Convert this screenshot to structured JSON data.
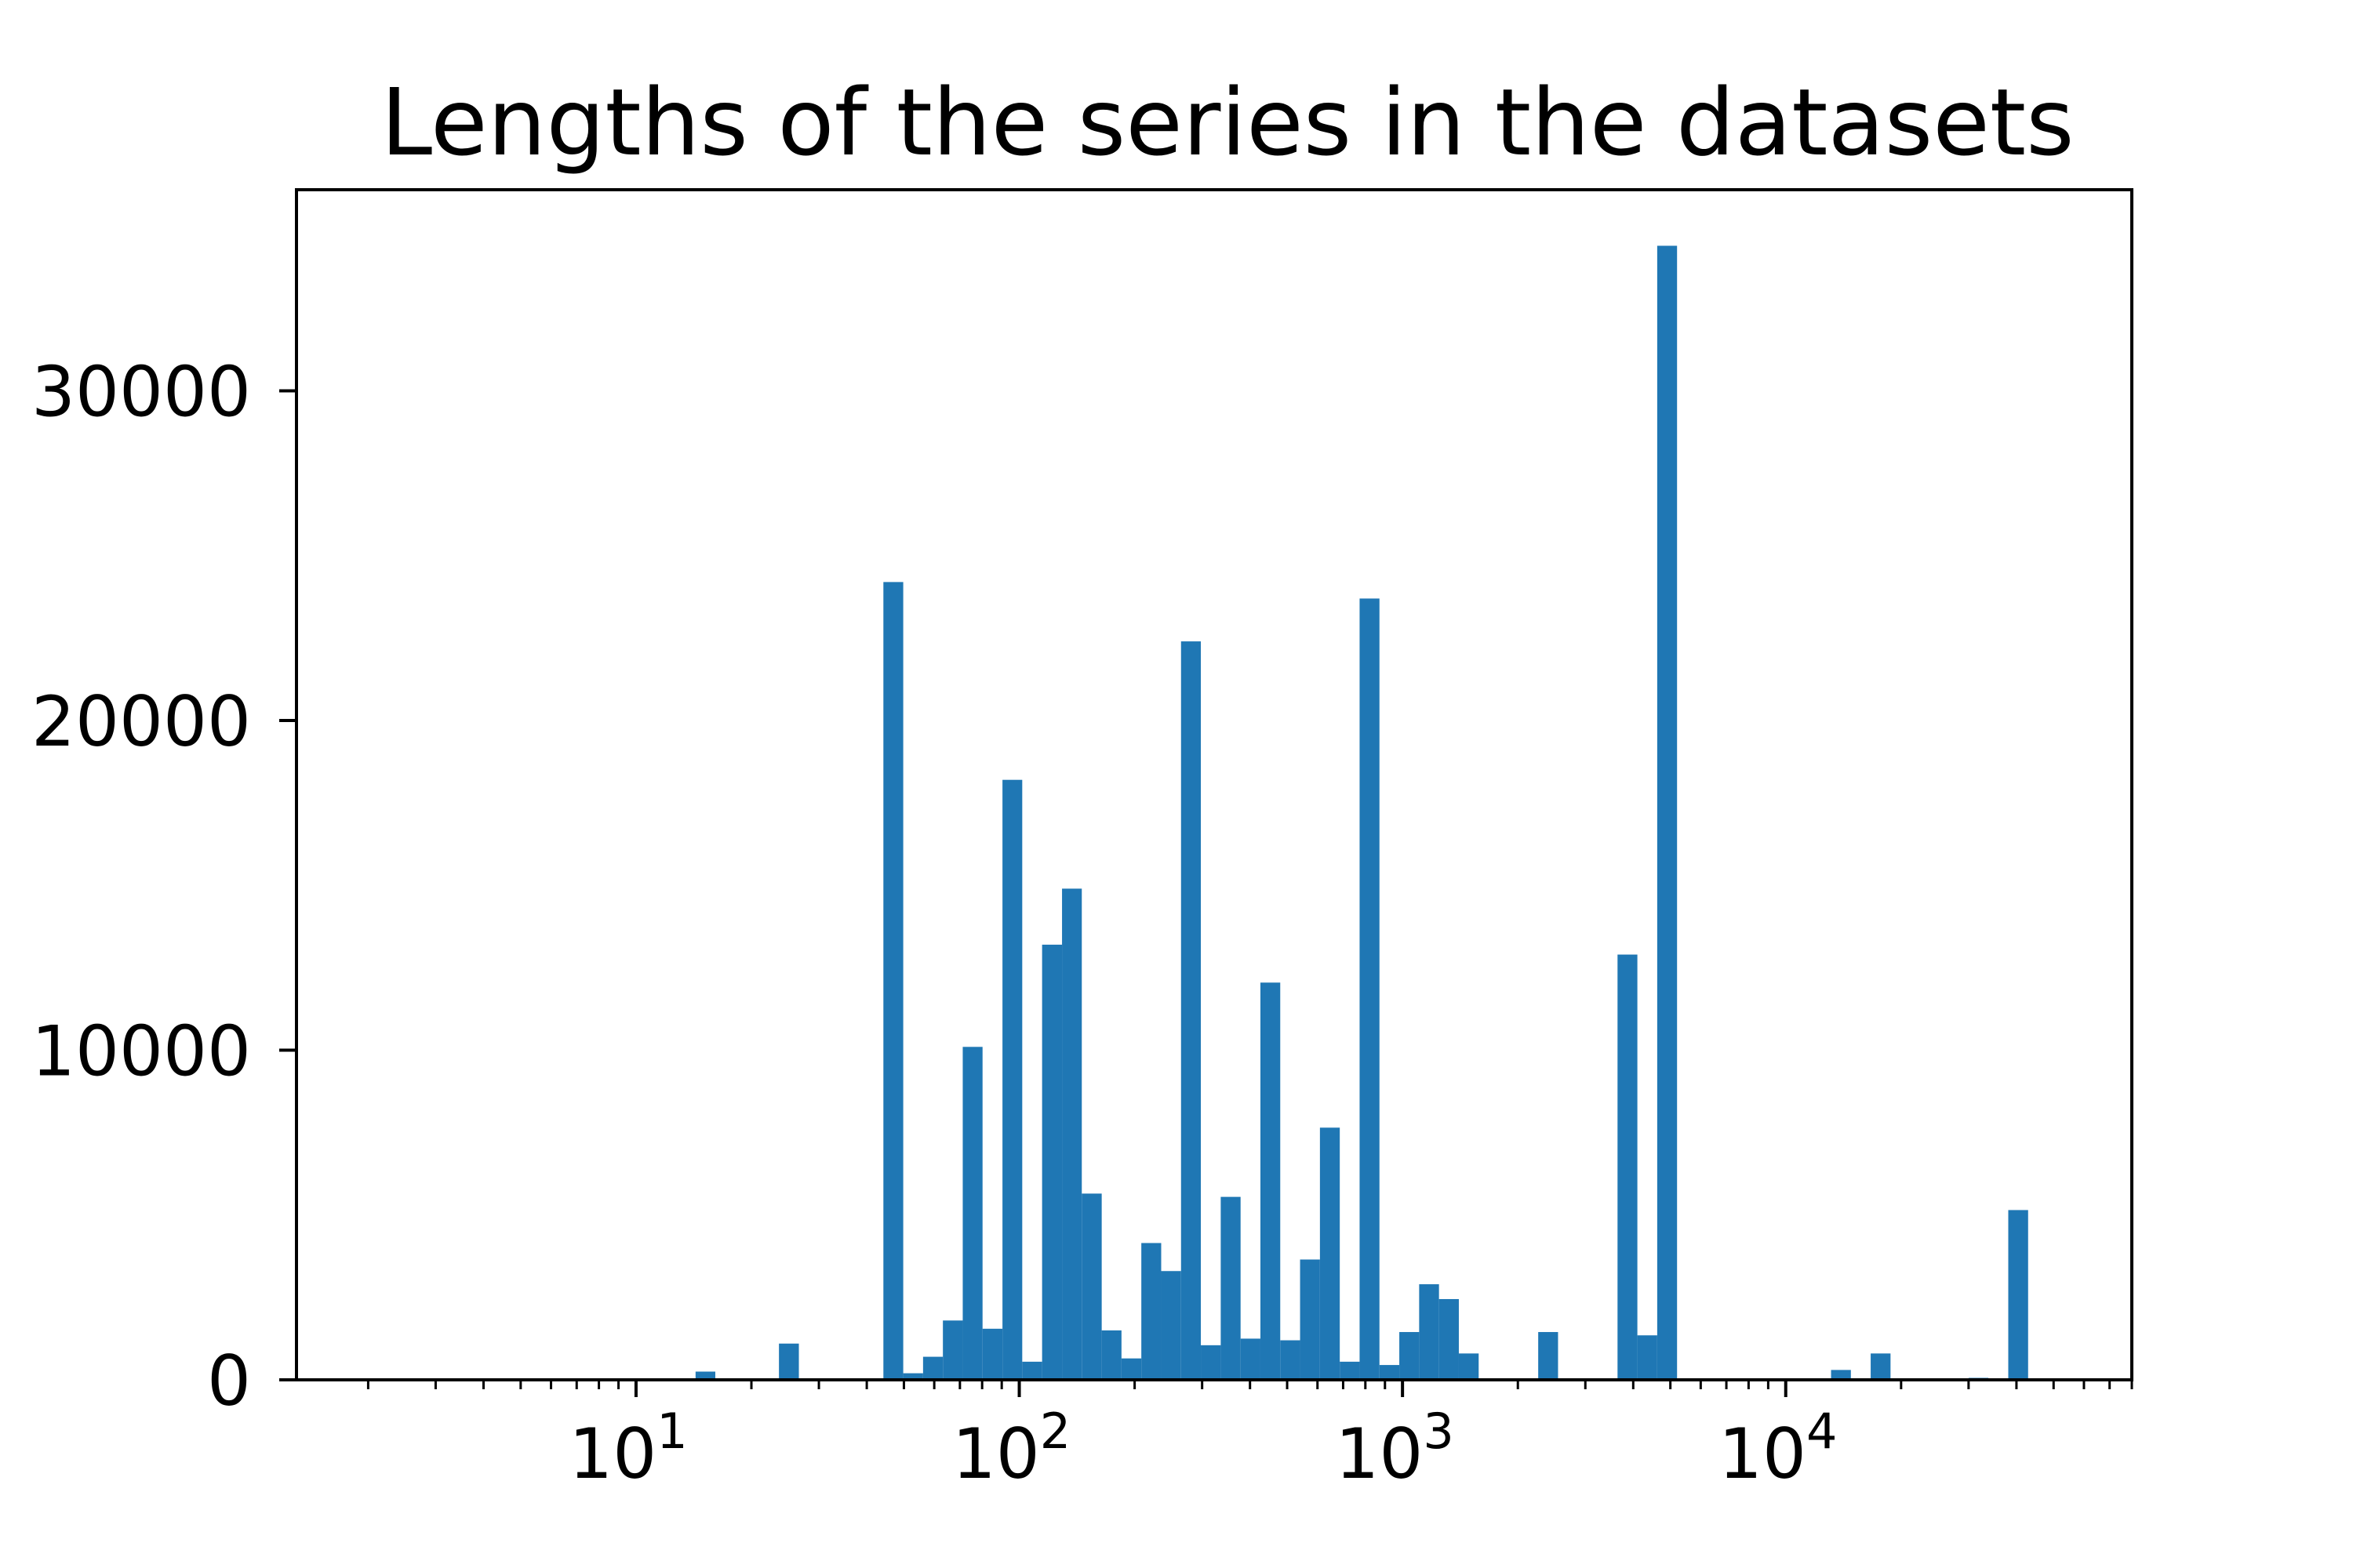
{
  "chart_data": {
    "type": "bar",
    "title": "Lengths of the series in the datasets",
    "xlabel": "",
    "ylabel": "",
    "x_scale": "log",
    "xlim": [
      1.3,
      80000
    ],
    "ylim": [
      0,
      36100
    ],
    "grid": false,
    "legend": "none",
    "bar_color": "#1f77b4",
    "x_ticks": [
      {
        "value": 10,
        "base": "10",
        "exp": "1"
      },
      {
        "value": 100,
        "base": "10",
        "exp": "2"
      },
      {
        "value": 1000,
        "base": "10",
        "exp": "3"
      },
      {
        "value": 10000,
        "base": "10",
        "exp": "4"
      }
    ],
    "y_ticks": [
      {
        "value": 0,
        "label": "0"
      },
      {
        "value": 10000,
        "label": "10000"
      },
      {
        "value": 20000,
        "label": "20000"
      },
      {
        "value": 30000,
        "label": "30000"
      }
    ],
    "bins": [
      {
        "x0": 14.3,
        "x1": 16.1,
        "count": 250
      },
      {
        "x0": 23.6,
        "x1": 26.6,
        "count": 1100
      },
      {
        "x0": 44.2,
        "x1": 49.8,
        "count": 24200
      },
      {
        "x0": 49.8,
        "x1": 56.1,
        "count": 200
      },
      {
        "x0": 56.1,
        "x1": 63.2,
        "count": 700
      },
      {
        "x0": 63.2,
        "x1": 71.2,
        "count": 1800
      },
      {
        "x0": 71.2,
        "x1": 80.2,
        "count": 10100
      },
      {
        "x0": 80.2,
        "x1": 90.4,
        "count": 1550
      },
      {
        "x0": 90.4,
        "x1": 101.8,
        "count": 18200
      },
      {
        "x0": 101.8,
        "x1": 114.7,
        "count": 550
      },
      {
        "x0": 114.7,
        "x1": 129.3,
        "count": 13200
      },
      {
        "x0": 129.3,
        "x1": 145.6,
        "count": 14900
      },
      {
        "x0": 145.6,
        "x1": 164.1,
        "count": 5650
      },
      {
        "x0": 164.1,
        "x1": 184.8,
        "count": 1500
      },
      {
        "x0": 184.8,
        "x1": 208.2,
        "count": 650
      },
      {
        "x0": 208.2,
        "x1": 234.6,
        "count": 4150
      },
      {
        "x0": 234.6,
        "x1": 264.3,
        "count": 3300
      },
      {
        "x0": 264.3,
        "x1": 297.7,
        "count": 22400
      },
      {
        "x0": 297.7,
        "x1": 335.5,
        "count": 1050
      },
      {
        "x0": 335.5,
        "x1": 378.0,
        "count": 5550
      },
      {
        "x0": 378.0,
        "x1": 425.8,
        "count": 1250
      },
      {
        "x0": 425.8,
        "x1": 479.7,
        "count": 12050
      },
      {
        "x0": 479.7,
        "x1": 540.4,
        "count": 1200
      },
      {
        "x0": 540.4,
        "x1": 608.9,
        "count": 3650
      },
      {
        "x0": 608.9,
        "x1": 686.0,
        "count": 7650
      },
      {
        "x0": 686.0,
        "x1": 772.8,
        "count": 550
      },
      {
        "x0": 772.8,
        "x1": 870.7,
        "count": 23700
      },
      {
        "x0": 870.7,
        "x1": 981.0,
        "count": 450
      },
      {
        "x0": 981.0,
        "x1": 1105.2,
        "count": 1450
      },
      {
        "x0": 1105.2,
        "x1": 1245.1,
        "count": 2900
      },
      {
        "x0": 1245.1,
        "x1": 1402.8,
        "count": 2450
      },
      {
        "x0": 1402.8,
        "x1": 1580.4,
        "count": 800
      },
      {
        "x0": 2260.0,
        "x1": 2546.0,
        "count": 1450
      },
      {
        "x0": 3640.0,
        "x1": 4101.0,
        "count": 12900
      },
      {
        "x0": 4101.0,
        "x1": 4620.0,
        "count": 1350
      },
      {
        "x0": 4620.0,
        "x1": 5205.0,
        "count": 34400
      },
      {
        "x0": 13130.0,
        "x1": 14790.0,
        "count": 300
      },
      {
        "x0": 16660.0,
        "x1": 18770.0,
        "count": 800
      },
      {
        "x0": 30000.0,
        "x1": 33800.0,
        "count": 60
      },
      {
        "x0": 38080.0,
        "x1": 42900.0,
        "count": 5150
      }
    ]
  }
}
